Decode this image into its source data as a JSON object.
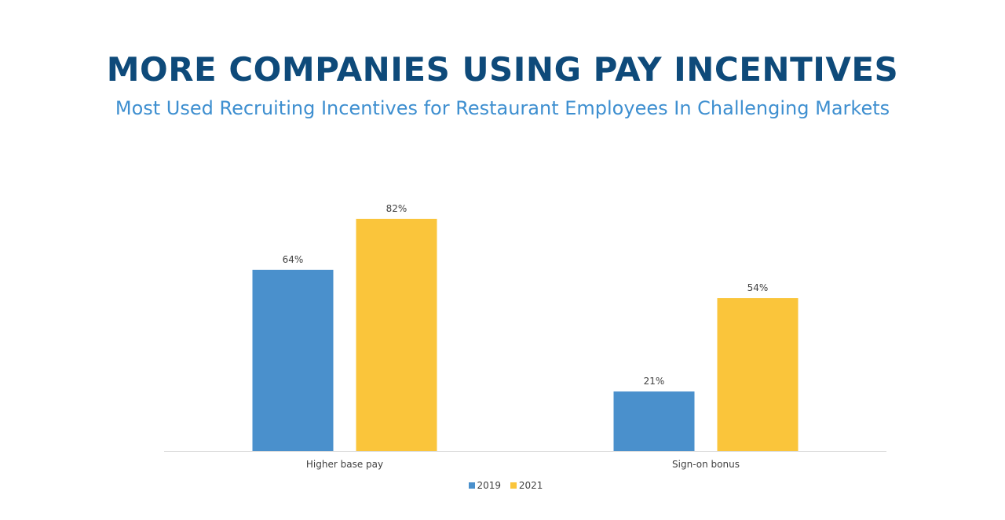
{
  "title": "MORE COMPANIES USING PAY INCENTIVES",
  "subtitle": "Most Used Recruiting Incentives for Restaurant Employees In Challenging Markets",
  "chart_data": {
    "type": "bar",
    "title": "MORE COMPANIES USING PAY INCENTIVES",
    "subtitle": "Most Used Recruiting Incentives for Restaurant Employees In Challenging Markets",
    "categories": [
      "Higher base pay",
      "Sign-on bonus"
    ],
    "series": [
      {
        "name": "2019",
        "values": [
          64,
          21
        ],
        "labels": [
          "64%",
          "21%"
        ],
        "color": "#4a90cc"
      },
      {
        "name": "2021",
        "values": [
          82,
          54
        ],
        "labels": [
          "82%",
          "54%"
        ],
        "color": "#fac53b"
      }
    ],
    "xlabel": "",
    "ylabel": "",
    "ylim": [
      0,
      100
    ],
    "grid": false,
    "legend": "bottom"
  }
}
